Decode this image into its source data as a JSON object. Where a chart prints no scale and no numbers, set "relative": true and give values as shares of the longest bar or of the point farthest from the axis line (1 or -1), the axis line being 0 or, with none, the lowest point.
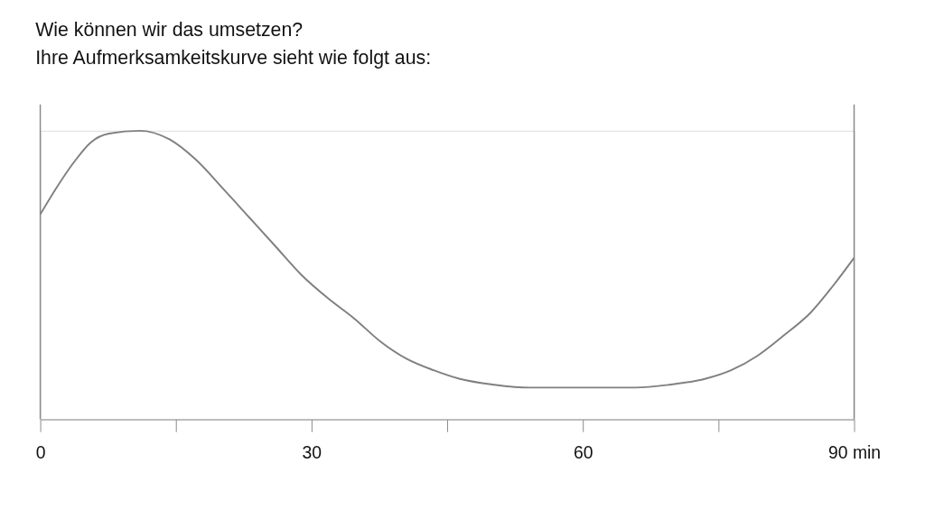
{
  "chart_data": {
    "type": "line",
    "title": "Wie können wir das umsetzen?",
    "subtitle": "Ihre Aufmerksamkeitskurve sieht wie folgt aus:",
    "relative": true,
    "x": [
      0,
      1.75,
      3.7,
      5.6,
      7.6,
      11,
      14.3,
      17.2,
      20.2,
      23.1,
      26,
      28.9,
      31.8,
      34.7,
      37.6,
      40.5,
      43.5,
      46.4,
      50.2,
      54.1,
      58,
      61.9,
      65.8,
      69.6,
      73.5,
      76.4,
      79.3,
      82.2,
      85.2,
      87.6,
      90
    ],
    "series": [
      {
        "color": "#808080",
        "values": [
          0.71,
          0.8,
          0.89,
          0.96,
          0.99,
          1.0,
          0.97,
          0.9,
          0.8,
          0.7,
          0.6,
          0.5,
          0.42,
          0.35,
          0.27,
          0.21,
          0.17,
          0.14,
          0.12,
          0.11,
          0.11,
          0.11,
          0.11,
          0.12,
          0.14,
          0.17,
          0.22,
          0.29,
          0.37,
          0.46,
          0.56
        ]
      }
    ],
    "xlim": [
      0,
      90
    ],
    "xticks": [
      0,
      {
        "value": 15,
        "label": null
      },
      30,
      {
        "value": 45,
        "label": null
      },
      60,
      {
        "value": 75,
        "label": null
      },
      {
        "value": 90,
        "label": "90 min"
      }
    ],
    "grid": false,
    "marker": "none",
    "line_style": "solid"
  }
}
